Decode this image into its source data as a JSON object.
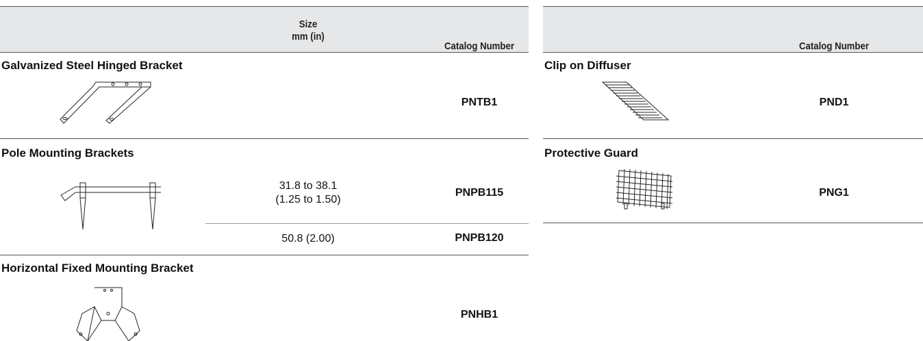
{
  "left_table": {
    "header": {
      "size": [
        "Size",
        "mm (in)"
      ],
      "catalog": "Catalog Number"
    },
    "sections": [
      {
        "title": "Galvanized Steel Hinged Bracket",
        "rows": [
          {
            "catalog": "PNTB1"
          }
        ]
      },
      {
        "title": "Pole Mounting Brackets",
        "rows": [
          {
            "size": [
              "31.8 to 38.1",
              "(1.25 to 1.50)"
            ],
            "catalog": "PNPB115"
          },
          {
            "size": "50.8 (2.00)",
            "catalog": "PNPB120"
          }
        ]
      },
      {
        "title": "Horizontal Fixed Mounting Bracket",
        "rows": [
          {
            "catalog": "PNHB1"
          }
        ]
      }
    ]
  },
  "right_table": {
    "header": {
      "catalog": "Catalog Number"
    },
    "sections": [
      {
        "title": "Clip on Diffuser",
        "rows": [
          {
            "catalog": "PND1"
          }
        ]
      },
      {
        "title": "Protective Guard",
        "rows": [
          {
            "catalog": "PNG1"
          }
        ]
      }
    ]
  }
}
